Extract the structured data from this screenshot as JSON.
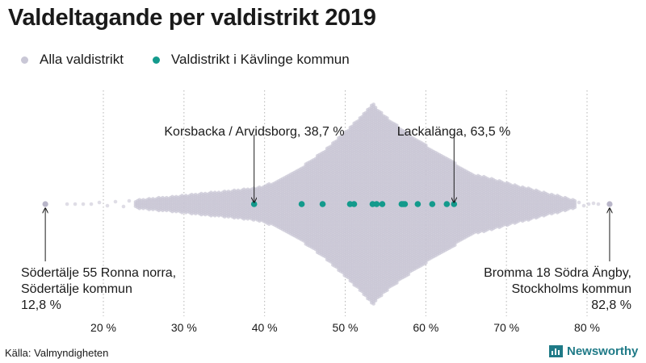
{
  "title": "Valdeltagande per valdistrikt 2019",
  "legend": {
    "all": {
      "label": "Alla valdistrikt",
      "color": "#c9c7d6"
    },
    "local": {
      "label": "Valdistrikt i Kävlinge kommun",
      "color": "#139a8c"
    }
  },
  "source": "Källa: Valmyndigheten",
  "brand": "Newsworthy",
  "chart_data": {
    "type": "beeswarm",
    "title": "Valdeltagande per valdistrikt 2019",
    "x_unit": "%",
    "xlim": [
      10,
      85
    ],
    "x_ticks": [
      20,
      30,
      40,
      50,
      60,
      70,
      80
    ],
    "x_tick_labels": [
      "20 %",
      "30 %",
      "40 %",
      "50 %",
      "60 %",
      "70 %",
      "80 %"
    ],
    "grid": "vertical dotted",
    "series": [
      {
        "name": "Alla valdistrikt",
        "color": "#c9c7d6",
        "min": 12.8,
        "max": 82.8,
        "distribution_peak": 53.5
      },
      {
        "name": "Valdistrikt i Kävlinge kommun",
        "color": "#139a8c",
        "values": [
          38.7,
          44.6,
          47.2,
          50.6,
          51.1,
          53.4,
          53.9,
          54.6,
          57.0,
          57.2,
          57.4,
          59.0,
          60.8,
          62.6,
          63.5
        ]
      }
    ],
    "annotations": [
      {
        "text": [
          "Korsbacka / Arvidsborg, 38,7 %"
        ],
        "value": 38.7
      },
      {
        "text": [
          "Lackalänga, 63,5 %"
        ],
        "value": 63.5
      },
      {
        "text": [
          "Södertälje 55 Ronna norra,",
          "Södertälje kommun",
          "12,8 %"
        ],
        "value": 12.8
      },
      {
        "text": [
          "Bromma 18 Södra Ängby,",
          "Stockholms kommun",
          "82,8 %"
        ],
        "value": 82.8
      }
    ]
  }
}
